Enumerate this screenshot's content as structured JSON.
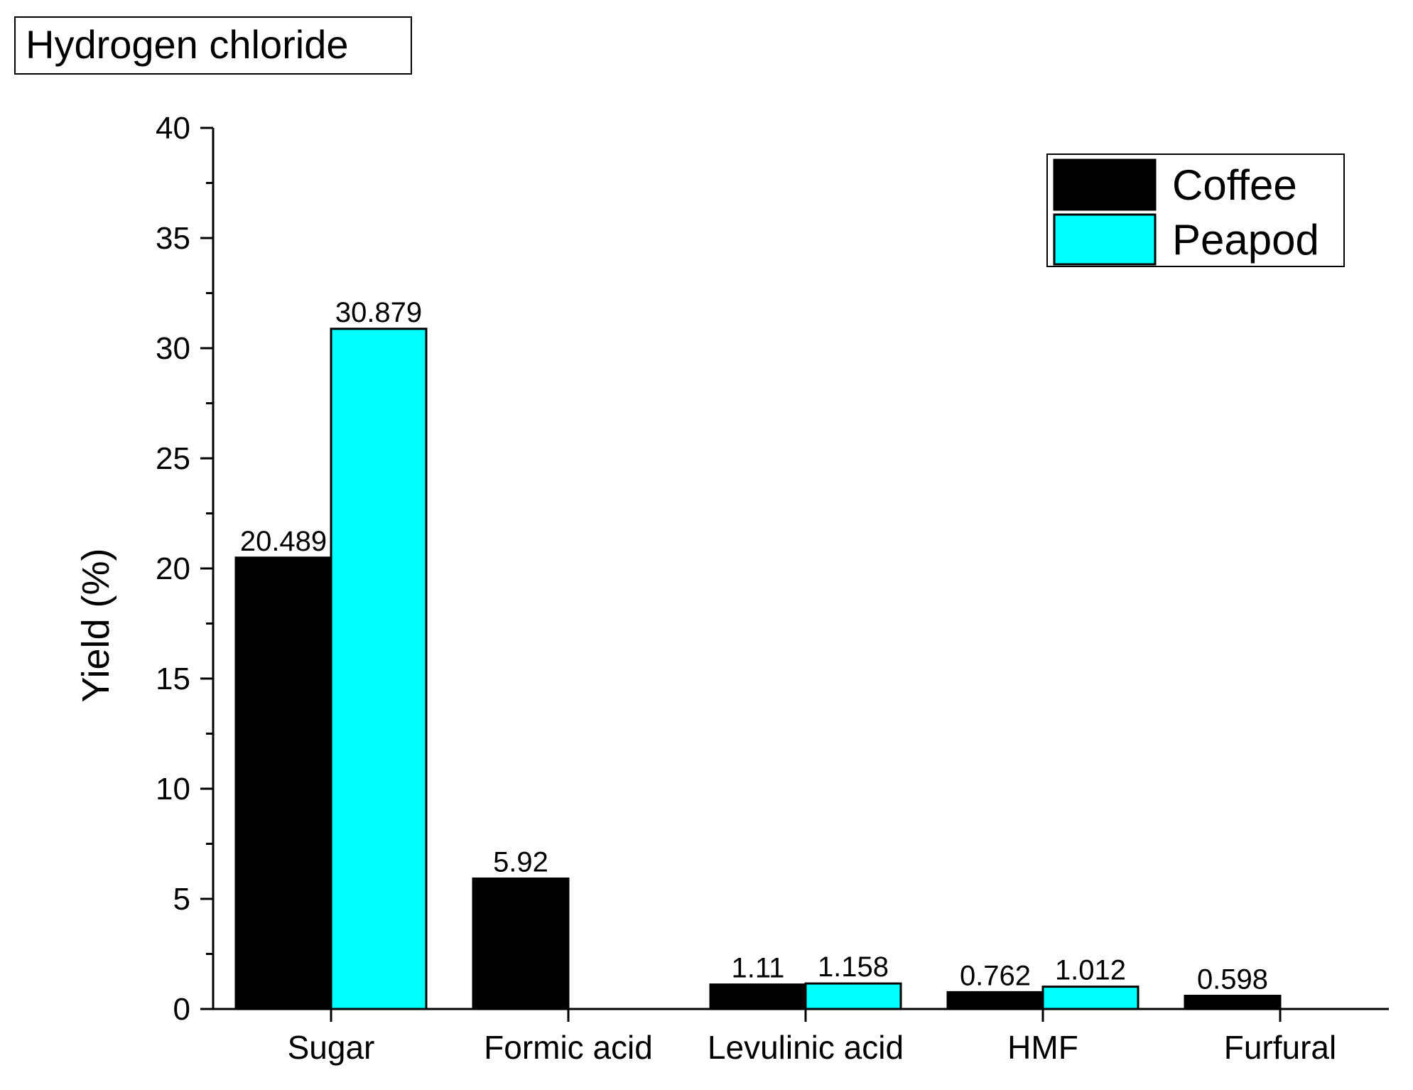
{
  "panel_label": "Hydrogen chloride",
  "colors": {
    "coffee": "#000000",
    "peapod": "#00ffff",
    "axis": "#000000",
    "background": "#ffffff"
  },
  "chart_data": {
    "type": "bar",
    "title": "",
    "xlabel": "",
    "ylabel": "Yield (%)",
    "ylim": [
      0,
      40
    ],
    "y_ticks": [
      0,
      5,
      10,
      15,
      20,
      25,
      30,
      35,
      40
    ],
    "y_minor_step": 2.5,
    "grid": false,
    "legend_position": "top-right",
    "categories": [
      "Sugar",
      "Formic acid",
      "Levulinic acid",
      "HMF",
      "Furfural"
    ],
    "series": [
      {
        "name": "Coffee",
        "color": "#000000",
        "values": [
          20.489,
          5.92,
          1.11,
          0.762,
          0.598
        ],
        "labels": [
          "20.489",
          "5.92",
          "1.11",
          "0.762",
          "0.598"
        ]
      },
      {
        "name": "Peapod",
        "color": "#00ffff",
        "values": [
          30.879,
          null,
          1.158,
          1.012,
          null
        ],
        "labels": [
          "30.879",
          null,
          "1.158",
          "1.012",
          null
        ]
      }
    ]
  }
}
